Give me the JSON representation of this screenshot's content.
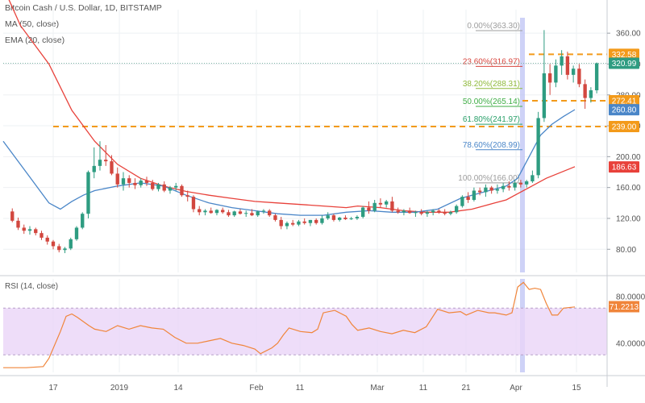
{
  "header": {
    "symbol": "Bitcoin Cash / U.S. Dollar, 1D, BITSTAMP",
    "ma": "MA (50, close)",
    "ema": "EMA (20, close)"
  },
  "colors": {
    "up": "#2e9c81",
    "down": "#d2473f",
    "ma": "#e8413a",
    "ema": "#4a86c8",
    "level": "#f39a1a",
    "rsi": "#f0853a",
    "rsi_band": "#ead4f7",
    "fib": "#787878",
    "fib_0": "#9c9c9c",
    "fib_236": "#d8453d",
    "fib_382": "#8fb93a",
    "fib_50": "#3fae46",
    "fib_618": "#2aa06a",
    "fib_786": "#4a86c8",
    "fib_100": "#9c9c9c",
    "highlight": "#b9bff3"
  },
  "chart_data": [
    {
      "type": "candlestick",
      "ylim": [
        50,
        380
      ],
      "y_ticks": [
        80,
        120,
        160,
        200,
        240,
        280,
        320,
        360
      ],
      "x_ticks": [
        "17",
        "2019",
        "14",
        "Feb",
        "11",
        "Mar",
        "11",
        "21",
        "Apr",
        "15"
      ],
      "highlight_date": "Apr 2",
      "fib_levels": [
        {
          "label": "0.00%(363.30)",
          "value": 363.3,
          "color_key": "fib_0"
        },
        {
          "label": "23.60%(316.97)",
          "value": 316.97,
          "color_key": "fib_236"
        },
        {
          "label": "38.20%(288.31)",
          "value": 288.31,
          "color_key": "fib_382"
        },
        {
          "label": "50.00%(265.14)",
          "value": 265.14,
          "color_key": "fib_50"
        },
        {
          "label": "61.80%(241.97)",
          "value": 241.97,
          "color_key": "fib_618"
        },
        {
          "label": "78.60%(208.99)",
          "value": 208.99,
          "color_key": "fib_786"
        },
        {
          "label": "100.00%(166.00)",
          "value": 166.0,
          "color_key": "fib_100"
        }
      ],
      "horizontal_levels": [
        332.58,
        272.41,
        239.0
      ],
      "price_labels": [
        {
          "text": "332.58",
          "value": 332.58,
          "color_key": "level"
        },
        {
          "text": "320.99",
          "value": 320.99,
          "color_key": "up"
        },
        {
          "text": "272.41",
          "value": 272.41,
          "color_key": "level"
        },
        {
          "text": "260.80",
          "value": 260.8,
          "color_key": "ema"
        },
        {
          "text": "239.00",
          "value": 239.0,
          "color_key": "level"
        },
        {
          "text": "186.63",
          "value": 186.63,
          "color_key": "ma"
        }
      ],
      "candles": [
        [
          129,
          133,
          115,
          117
        ],
        [
          117,
          121,
          105,
          108
        ],
        [
          108,
          112,
          100,
          104
        ],
        [
          104,
          110,
          99,
          106
        ],
        [
          106,
          108,
          98,
          101
        ],
        [
          101,
          104,
          92,
          95
        ],
        [
          95,
          98,
          86,
          90
        ],
        [
          90,
          92,
          80,
          84
        ],
        [
          84,
          87,
          76,
          79
        ],
        [
          79,
          83,
          75,
          81
        ],
        [
          81,
          95,
          79,
          93
        ],
        [
          93,
          110,
          91,
          108
        ],
        [
          108,
          128,
          106,
          126
        ],
        [
          126,
          182,
          120,
          180
        ],
        [
          180,
          212,
          172,
          188
        ],
        [
          188,
          220,
          182,
          196
        ],
        [
          196,
          215,
          188,
          194
        ],
        [
          194,
          202,
          176,
          178
        ],
        [
          178,
          186,
          160,
          164
        ],
        [
          164,
          180,
          156,
          172
        ],
        [
          172,
          176,
          160,
          166
        ],
        [
          166,
          172,
          158,
          163
        ],
        [
          163,
          172,
          160,
          169
        ],
        [
          169,
          174,
          162,
          166
        ],
        [
          166,
          170,
          156,
          158
        ],
        [
          158,
          166,
          155,
          164
        ],
        [
          164,
          168,
          154,
          156
        ],
        [
          156,
          162,
          152,
          160
        ],
        [
          160,
          166,
          156,
          162
        ],
        [
          162,
          164,
          148,
          150
        ],
        [
          150,
          156,
          142,
          148
        ],
        [
          148,
          150,
          128,
          132
        ],
        [
          132,
          136,
          124,
          128
        ],
        [
          128,
          132,
          124,
          130
        ],
        [
          130,
          134,
          126,
          127
        ],
        [
          127,
          132,
          124,
          131
        ],
        [
          131,
          134,
          126,
          128
        ],
        [
          128,
          131,
          122,
          124
        ],
        [
          124,
          130,
          122,
          129
        ],
        [
          129,
          132,
          125,
          126
        ],
        [
          126,
          130,
          122,
          127
        ],
        [
          127,
          132,
          123,
          124
        ],
        [
          124,
          130,
          122,
          129
        ],
        [
          129,
          132,
          126,
          130
        ],
        [
          130,
          132,
          122,
          124
        ],
        [
          124,
          126,
          116,
          118
        ],
        [
          118,
          122,
          106,
          110
        ],
        [
          110,
          116,
          106,
          114
        ],
        [
          114,
          118,
          110,
          112
        ],
        [
          112,
          118,
          110,
          116
        ],
        [
          116,
          120,
          112,
          114
        ],
        [
          114,
          118,
          110,
          118
        ],
        [
          118,
          120,
          112,
          114
        ],
        [
          114,
          124,
          112,
          120
        ],
        [
          120,
          128,
          118,
          124
        ],
        [
          124,
          126,
          116,
          118
        ],
        [
          118,
          122,
          116,
          121
        ],
        [
          121,
          124,
          118,
          119
        ],
        [
          119,
          122,
          118,
          120
        ],
        [
          120,
          124,
          118,
          122
        ],
        [
          122,
          136,
          120,
          134
        ],
        [
          134,
          142,
          126,
          130
        ],
        [
          130,
          144,
          128,
          140
        ],
        [
          140,
          146,
          134,
          138
        ],
        [
          138,
          144,
          134,
          142
        ],
        [
          142,
          148,
          128,
          130
        ],
        [
          130,
          134,
          126,
          128
        ],
        [
          128,
          132,
          124,
          130
        ],
        [
          130,
          134,
          126,
          127
        ],
        [
          127,
          130,
          122,
          128
        ],
        [
          128,
          132,
          124,
          126
        ],
        [
          126,
          130,
          122,
          128
        ],
        [
          128,
          132,
          124,
          130
        ],
        [
          130,
          132,
          126,
          128
        ],
        [
          128,
          132,
          124,
          126
        ],
        [
          126,
          130,
          124,
          128
        ],
        [
          128,
          138,
          126,
          136
        ],
        [
          136,
          150,
          134,
          148
        ],
        [
          148,
          154,
          140,
          144
        ],
        [
          144,
          160,
          142,
          156
        ],
        [
          156,
          160,
          150,
          154
        ],
        [
          154,
          164,
          148,
          160
        ],
        [
          160,
          162,
          152,
          156
        ],
        [
          156,
          164,
          152,
          158
        ],
        [
          158,
          166,
          154,
          162
        ],
        [
          162,
          168,
          156,
          160
        ],
        [
          160,
          170,
          156,
          166
        ],
        [
          166,
          170,
          160,
          164
        ],
        [
          164,
          170,
          160,
          168
        ],
        [
          168,
          182,
          166,
          176
        ],
        [
          176,
          258,
          172,
          250
        ],
        [
          250,
          364,
          245,
          308
        ],
        [
          308,
          320,
          280,
          296
        ],
        [
          296,
          326,
          290,
          318
        ],
        [
          318,
          338,
          306,
          330
        ],
        [
          330,
          336,
          300,
          306
        ],
        [
          306,
          318,
          296,
          314
        ],
        [
          314,
          320,
          290,
          294
        ],
        [
          294,
          300,
          262,
          276
        ],
        [
          276,
          290,
          270,
          286
        ],
        [
          286,
          322,
          282,
          321
        ]
      ],
      "ma50": [
        [
          0,
          420
        ],
        [
          3,
          370
        ],
        [
          8,
          320
        ],
        [
          12,
          260
        ],
        [
          16,
          220
        ],
        [
          20,
          190
        ],
        [
          24,
          172
        ],
        [
          28,
          162
        ],
        [
          32,
          155
        ],
        [
          36,
          150
        ],
        [
          40,
          146
        ],
        [
          44,
          142
        ],
        [
          48,
          140
        ],
        [
          52,
          138
        ],
        [
          56,
          136
        ],
        [
          60,
          134
        ],
        [
          62,
          136
        ],
        [
          66,
          134
        ],
        [
          70,
          130
        ],
        [
          74,
          128
        ],
        [
          78,
          128
        ],
        [
          82,
          132
        ],
        [
          86,
          140
        ],
        [
          88,
          144
        ],
        [
          90,
          152
        ],
        [
          92,
          160
        ],
        [
          95,
          172
        ],
        [
          100,
          187
        ]
      ],
      "ema20": [
        [
          0,
          220
        ],
        [
          4,
          180
        ],
        [
          8,
          140
        ],
        [
          10,
          132
        ],
        [
          12,
          142
        ],
        [
          14,
          150
        ],
        [
          16,
          156
        ],
        [
          20,
          162
        ],
        [
          24,
          166
        ],
        [
          28,
          162
        ],
        [
          32,
          150
        ],
        [
          36,
          140
        ],
        [
          40,
          134
        ],
        [
          44,
          130
        ],
        [
          48,
          126
        ],
        [
          52,
          124
        ],
        [
          56,
          124
        ],
        [
          60,
          128
        ],
        [
          64,
          130
        ],
        [
          68,
          128
        ],
        [
          72,
          128
        ],
        [
          76,
          132
        ],
        [
          80,
          146
        ],
        [
          84,
          154
        ],
        [
          88,
          162
        ],
        [
          90,
          172
        ],
        [
          92,
          200
        ],
        [
          94,
          228
        ],
        [
          96,
          242
        ],
        [
          98,
          252
        ],
        [
          100,
          261
        ]
      ]
    },
    {
      "type": "line",
      "title": "RSI (14, close)",
      "ylim": [
        15,
        95
      ],
      "y_ticks": [
        "80.0000",
        "40.0000"
      ],
      "y_tick_values": [
        80,
        40
      ],
      "band": [
        30,
        70
      ],
      "last_label": "71.2213",
      "rsi": [
        [
          0,
          19
        ],
        [
          4,
          19
        ],
        [
          7,
          20
        ],
        [
          8,
          27
        ],
        [
          10,
          50
        ],
        [
          11,
          63
        ],
        [
          12,
          65
        ],
        [
          13,
          62
        ],
        [
          15,
          55
        ],
        [
          16,
          52
        ],
        [
          18,
          50
        ],
        [
          20,
          55
        ],
        [
          22,
          52
        ],
        [
          24,
          55
        ],
        [
          26,
          53
        ],
        [
          28,
          52
        ],
        [
          30,
          45
        ],
        [
          32,
          40
        ],
        [
          34,
          40
        ],
        [
          36,
          42
        ],
        [
          38,
          44
        ],
        [
          40,
          40
        ],
        [
          42,
          38
        ],
        [
          44,
          35
        ],
        [
          45,
          31
        ],
        [
          47,
          36
        ],
        [
          48,
          40
        ],
        [
          49,
          47
        ],
        [
          50,
          53
        ],
        [
          52,
          50
        ],
        [
          54,
          49
        ],
        [
          55,
          52
        ],
        [
          56,
          66
        ],
        [
          58,
          68
        ],
        [
          60,
          63
        ],
        [
          61,
          56
        ],
        [
          62,
          51
        ],
        [
          63,
          52
        ],
        [
          64,
          53
        ],
        [
          66,
          50
        ],
        [
          68,
          48
        ],
        [
          70,
          51
        ],
        [
          72,
          49
        ],
        [
          74,
          54
        ],
        [
          76,
          69
        ],
        [
          78,
          66
        ],
        [
          80,
          67
        ],
        [
          81,
          64
        ],
        [
          83,
          68
        ],
        [
          85,
          66
        ],
        [
          86,
          66
        ],
        [
          88,
          64
        ],
        [
          89,
          66
        ],
        [
          90,
          88
        ],
        [
          91,
          92
        ],
        [
          92,
          86
        ],
        [
          93,
          87
        ],
        [
          94,
          86
        ],
        [
          95,
          74
        ],
        [
          96,
          64
        ],
        [
          97,
          64
        ],
        [
          98,
          70
        ],
        [
          100,
          71
        ]
      ]
    }
  ]
}
